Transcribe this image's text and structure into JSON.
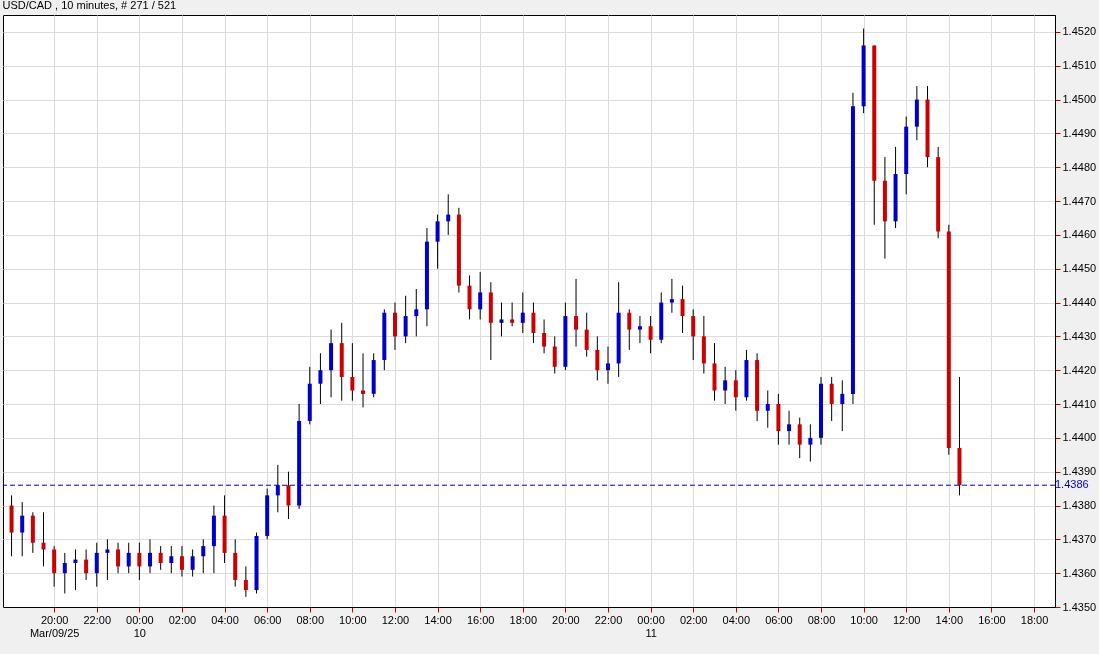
{
  "chart_data": {
    "type": "candlestick",
    "title": "USD/CAD , 10 minutes, # 271 / 521",
    "x": [
      "--03-09T18:00",
      "--03-09T18:30",
      "--03-09T19:00",
      "--03-09T19:30",
      "--03-09T20:00",
      "--03-09T20:30",
      "--03-09T21:00",
      "--03-09T21:30",
      "--03-09T22:00",
      "--03-09T22:30",
      "--03-09T23:00",
      "--03-09T23:30",
      "--03-10T00:00",
      "--03-10T00:30",
      "--03-10T01:00",
      "--03-10T01:30",
      "--03-10T02:00",
      "--03-10T02:30",
      "--03-10T03:00",
      "--03-10T03:30",
      "--03-10T04:00",
      "--03-10T04:30",
      "--03-10T05:00",
      "--03-10T05:30",
      "--03-10T06:00",
      "--03-10T06:30",
      "--03-10T07:00",
      "--03-10T07:30",
      "--03-10T08:00",
      "--03-10T08:30",
      "--03-10T09:00",
      "--03-10T09:30",
      "--03-10T10:00",
      "--03-10T10:30",
      "--03-10T11:00",
      "--03-10T11:30",
      "--03-10T12:00",
      "--03-10T12:30",
      "--03-10T13:00",
      "--03-10T13:30",
      "--03-10T14:00",
      "--03-10T14:30",
      "--03-10T15:00",
      "--03-10T15:30",
      "--03-10T16:00",
      "--03-10T16:30",
      "--03-10T17:00",
      "--03-10T17:30",
      "--03-10T18:00",
      "--03-10T18:30",
      "--03-10T19:00",
      "--03-10T19:30",
      "--03-10T20:00",
      "--03-10T20:30",
      "--03-10T21:00",
      "--03-10T21:30",
      "--03-10T22:00",
      "--03-10T22:30",
      "--03-10T23:00",
      "--03-10T23:30",
      "--03-11T00:00",
      "--03-11T00:30",
      "--03-11T01:00",
      "--03-11T01:30",
      "--03-11T02:00",
      "--03-11T02:30",
      "--03-11T03:00",
      "--03-11T03:30",
      "--03-11T04:00",
      "--03-11T04:30",
      "--03-11T05:00",
      "--03-11T05:30",
      "--03-11T06:00",
      "--03-11T06:30",
      "--03-11T07:00",
      "--03-11T07:30",
      "--03-11T08:00",
      "--03-11T08:30",
      "--03-11T09:00",
      "--03-11T09:30",
      "--03-11T10:00",
      "--03-11T10:30",
      "--03-11T11:00",
      "--03-11T11:30",
      "--03-11T12:00",
      "--03-11T12:30",
      "--03-11T13:00",
      "--03-11T13:30",
      "--03-11T14:00",
      "--03-11T14:30"
    ],
    "ohlc": [
      [
        1.438,
        1.4383,
        1.4365,
        1.4372
      ],
      [
        1.4372,
        1.4381,
        1.4365,
        1.4377
      ],
      [
        1.4377,
        1.4378,
        1.4366,
        1.4369
      ],
      [
        1.4369,
        1.4378,
        1.4362,
        1.4367
      ],
      [
        1.4367,
        1.4368,
        1.4356,
        1.436
      ],
      [
        1.436,
        1.4366,
        1.4354,
        1.4363
      ],
      [
        1.4363,
        1.4367,
        1.4355,
        1.4364
      ],
      [
        1.4364,
        1.4367,
        1.4358,
        1.436
      ],
      [
        1.436,
        1.4369,
        1.4356,
        1.4366
      ],
      [
        1.4366,
        1.437,
        1.4358,
        1.4367
      ],
      [
        1.4367,
        1.4369,
        1.436,
        1.4362
      ],
      [
        1.4362,
        1.4369,
        1.436,
        1.4366
      ],
      [
        1.4366,
        1.4369,
        1.4358,
        1.4362
      ],
      [
        1.4362,
        1.437,
        1.436,
        1.4366
      ],
      [
        1.4366,
        1.4368,
        1.4361,
        1.4363
      ],
      [
        1.4363,
        1.4368,
        1.436,
        1.4365
      ],
      [
        1.4365,
        1.4368,
        1.4359,
        1.4361
      ],
      [
        1.4361,
        1.4367,
        1.4359,
        1.4365
      ],
      [
        1.4365,
        1.437,
        1.436,
        1.4368
      ],
      [
        1.4368,
        1.438,
        1.436,
        1.4377
      ],
      [
        1.4377,
        1.4383,
        1.4363,
        1.4366
      ],
      [
        1.4366,
        1.437,
        1.4356,
        1.4358
      ],
      [
        1.4358,
        1.4362,
        1.4353,
        1.4355
      ],
      [
        1.4355,
        1.4372,
        1.4354,
        1.4371
      ],
      [
        1.4371,
        1.4385,
        1.437,
        1.4383
      ],
      [
        1.4383,
        1.4392,
        1.4378,
        1.4386
      ],
      [
        1.4386,
        1.439,
        1.4376,
        1.438
      ],
      [
        1.438,
        1.441,
        1.4379,
        1.4405
      ],
      [
        1.4405,
        1.4421,
        1.4404,
        1.4416
      ],
      [
        1.4416,
        1.4425,
        1.441,
        1.442
      ],
      [
        1.442,
        1.4432,
        1.4412,
        1.4428
      ],
      [
        1.4428,
        1.4434,
        1.4411,
        1.4418
      ],
      [
        1.4418,
        1.4428,
        1.4411,
        1.4414
      ],
      [
        1.4414,
        1.4425,
        1.4409,
        1.4413
      ],
      [
        1.4413,
        1.4425,
        1.4412,
        1.4423
      ],
      [
        1.4423,
        1.4438,
        1.442,
        1.4437
      ],
      [
        1.4437,
        1.444,
        1.4426,
        1.443
      ],
      [
        1.443,
        1.4442,
        1.4428,
        1.4436
      ],
      [
        1.4436,
        1.4444,
        1.443,
        1.4438
      ],
      [
        1.4438,
        1.4462,
        1.4433,
        1.4458
      ],
      [
        1.4458,
        1.4466,
        1.445,
        1.4464
      ],
      [
        1.4464,
        1.4472,
        1.446,
        1.4466
      ],
      [
        1.4466,
        1.4468,
        1.4443,
        1.4445
      ],
      [
        1.4445,
        1.4448,
        1.4435,
        1.4438
      ],
      [
        1.4438,
        1.4449,
        1.4435,
        1.4443
      ],
      [
        1.4443,
        1.4446,
        1.4423,
        1.4434
      ],
      [
        1.4434,
        1.444,
        1.443,
        1.4435
      ],
      [
        1.4435,
        1.444,
        1.4433,
        1.4434
      ],
      [
        1.4434,
        1.4443,
        1.4431,
        1.4437
      ],
      [
        1.4437,
        1.444,
        1.4428,
        1.4431
      ],
      [
        1.4431,
        1.4435,
        1.4425,
        1.4427
      ],
      [
        1.4427,
        1.443,
        1.4419,
        1.4421
      ],
      [
        1.4421,
        1.444,
        1.442,
        1.4436
      ],
      [
        1.4436,
        1.4447,
        1.4427,
        1.4432
      ],
      [
        1.4432,
        1.4437,
        1.4424,
        1.4426
      ],
      [
        1.4426,
        1.443,
        1.4417,
        1.442
      ],
      [
        1.442,
        1.4427,
        1.4416,
        1.4422
      ],
      [
        1.4422,
        1.4446,
        1.4418,
        1.4437
      ],
      [
        1.4437,
        1.4438,
        1.4426,
        1.4432
      ],
      [
        1.4432,
        1.4436,
        1.4428,
        1.4433
      ],
      [
        1.4433,
        1.4436,
        1.4425,
        1.4429
      ],
      [
        1.4429,
        1.4443,
        1.4428,
        1.444
      ],
      [
        1.444,
        1.4447,
        1.4437,
        1.4441
      ],
      [
        1.4441,
        1.4445,
        1.4431,
        1.4436
      ],
      [
        1.4436,
        1.4438,
        1.4423,
        1.443
      ],
      [
        1.443,
        1.4436,
        1.4419,
        1.4422
      ],
      [
        1.4422,
        1.4428,
        1.4411,
        1.4414
      ],
      [
        1.4414,
        1.4421,
        1.441,
        1.4417
      ],
      [
        1.4417,
        1.442,
        1.4408,
        1.4412
      ],
      [
        1.4412,
        1.4426,
        1.4411,
        1.4423
      ],
      [
        1.4423,
        1.4425,
        1.4405,
        1.4408
      ],
      [
        1.4408,
        1.4414,
        1.4403,
        1.441
      ],
      [
        1.441,
        1.4413,
        1.4398,
        1.4402
      ],
      [
        1.4402,
        1.4408,
        1.4398,
        1.4404
      ],
      [
        1.4404,
        1.4406,
        1.4394,
        1.4398
      ],
      [
        1.4398,
        1.4404,
        1.4393,
        1.44
      ],
      [
        1.44,
        1.4418,
        1.4398,
        1.4416
      ],
      [
        1.4416,
        1.4418,
        1.4405,
        1.441
      ],
      [
        1.441,
        1.4417,
        1.4402,
        1.4413
      ],
      [
        1.4413,
        1.4502,
        1.441,
        1.4498
      ],
      [
        1.4498,
        1.4521,
        1.4496,
        1.4516
      ],
      [
        1.4516,
        1.4516,
        1.4463,
        1.4476
      ],
      [
        1.4476,
        1.4483,
        1.4453,
        1.4464
      ],
      [
        1.4464,
        1.4486,
        1.4462,
        1.4478
      ],
      [
        1.4478,
        1.4495,
        1.4472,
        1.4492
      ],
      [
        1.4492,
        1.4504,
        1.4488,
        1.45
      ],
      [
        1.45,
        1.4504,
        1.448,
        1.4483
      ],
      [
        1.4483,
        1.4486,
        1.4459,
        1.4461
      ],
      [
        1.4461,
        1.4463,
        1.4395,
        1.4397
      ],
      [
        1.4397,
        1.4418,
        1.4383,
        1.4386
      ]
    ],
    "xlim": [
      "--03-09T17:50",
      "--03-11T18:45"
    ],
    "xticks": [
      {
        "value": "--03-09T20:00",
        "label": "20:00\nMar/09/25"
      },
      {
        "value": "--03-09T22:00",
        "label": "22:00"
      },
      {
        "value": "--03-10T00:00",
        "label": "00:00\n10"
      },
      {
        "value": "--03-10T02:00",
        "label": "02:00"
      },
      {
        "value": "--03-10T04:00",
        "label": "04:00"
      },
      {
        "value": "--03-10T06:00",
        "label": "06:00"
      },
      {
        "value": "--03-10T08:00",
        "label": "08:00"
      },
      {
        "value": "--03-10T10:00",
        "label": "10:00"
      },
      {
        "value": "--03-10T12:00",
        "label": "12:00"
      },
      {
        "value": "--03-10T14:00",
        "label": "14:00"
      },
      {
        "value": "--03-10T16:00",
        "label": "16:00"
      },
      {
        "value": "--03-10T18:00",
        "label": "18:00"
      },
      {
        "value": "--03-10T20:00",
        "label": "20:00"
      },
      {
        "value": "--03-10T22:00",
        "label": "22:00"
      },
      {
        "value": "--03-11T00:00",
        "label": "00:00\n11"
      },
      {
        "value": "--03-11T02:00",
        "label": "02:00"
      },
      {
        "value": "--03-11T04:00",
        "label": "04:00"
      },
      {
        "value": "--03-11T06:00",
        "label": "06:00"
      },
      {
        "value": "--03-11T08:00",
        "label": "08:00"
      },
      {
        "value": "--03-11T10:00",
        "label": "10:00"
      },
      {
        "value": "--03-11T12:00",
        "label": "12:00"
      },
      {
        "value": "--03-11T14:00",
        "label": "14:00"
      },
      {
        "value": "--03-11T16:00",
        "label": "16:00"
      },
      {
        "value": "--03-11T18:00",
        "label": "18:00"
      }
    ],
    "ylim": [
      1.435,
      1.4525
    ],
    "yticks": [
      {
        "value": 1.435,
        "label": "1.4350"
      },
      {
        "value": 1.436,
        "label": "1.4360"
      },
      {
        "value": 1.437,
        "label": "1.4370"
      },
      {
        "value": 1.438,
        "label": "1.4380"
      },
      {
        "value": 1.439,
        "label": "1.4390"
      },
      {
        "value": 1.44,
        "label": "1.4400"
      },
      {
        "value": 1.441,
        "label": "1.4410"
      },
      {
        "value": 1.442,
        "label": "1.4420"
      },
      {
        "value": 1.443,
        "label": "1.4430"
      },
      {
        "value": 1.444,
        "label": "1.4440"
      },
      {
        "value": 1.445,
        "label": "1.4450"
      },
      {
        "value": 1.446,
        "label": "1.4460"
      },
      {
        "value": 1.447,
        "label": "1.4470"
      },
      {
        "value": 1.448,
        "label": "1.4480"
      },
      {
        "value": 1.449,
        "label": "1.4490"
      },
      {
        "value": 1.45,
        "label": "1.4500"
      },
      {
        "value": 1.451,
        "label": "1.4510"
      },
      {
        "value": 1.452,
        "label": "1.4520"
      }
    ],
    "ref_lines": [
      {
        "axis": "y",
        "value": 1.4386,
        "label": "1.4386",
        "color": "#0000cc",
        "line_style": "dashed"
      }
    ],
    "grid": true
  }
}
